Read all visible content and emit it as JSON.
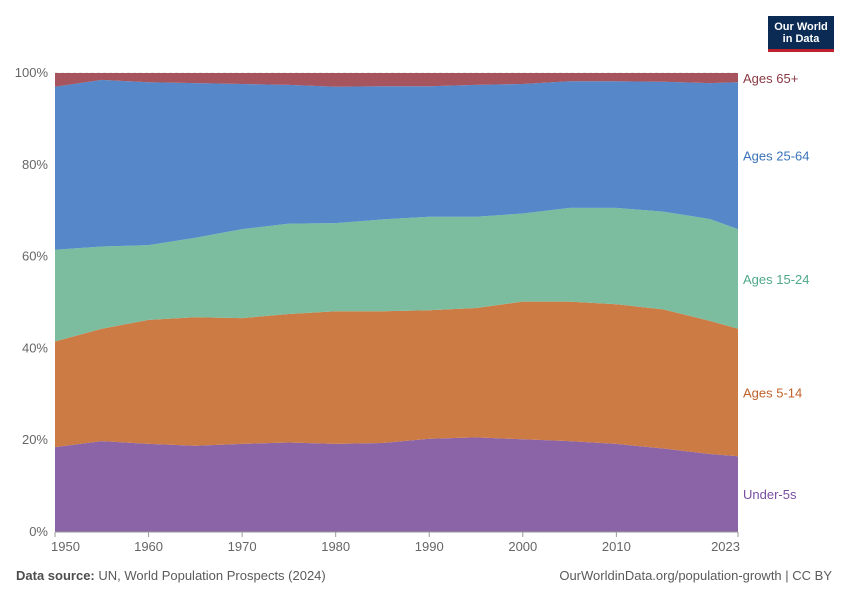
{
  "logo": {
    "line1": "Our World",
    "line2": "in Data"
  },
  "footer": {
    "source_label": "Data source:",
    "source_text": "UN, World Population Prospects (2024)",
    "url": "OurWorldinData.org/population-growth | CC BY"
  },
  "chart_data": {
    "type": "area",
    "stacked": true,
    "x": [
      1950,
      1955,
      1960,
      1965,
      1970,
      1975,
      1980,
      1985,
      1990,
      1995,
      2000,
      2005,
      2010,
      2015,
      2020,
      2023
    ],
    "xticks": [
      "1950",
      "1960",
      "1970",
      "1980",
      "1990",
      "2000",
      "2010",
      "2023"
    ],
    "xtick_values": [
      1950,
      1960,
      1970,
      1980,
      1990,
      2000,
      2010,
      2023
    ],
    "yticks": [
      "0%",
      "20%",
      "40%",
      "60%",
      "80%",
      "100%"
    ],
    "ytick_values": [
      0,
      20,
      40,
      60,
      80,
      100
    ],
    "ylim": [
      0,
      100
    ],
    "grid": true,
    "legend": "right",
    "series": [
      {
        "name": "Under-5s",
        "color": "#8b64a8",
        "values": [
          18.5,
          19.8,
          19.2,
          18.8,
          19.2,
          19.5,
          19.2,
          19.4,
          20.3,
          20.6,
          20.2,
          19.8,
          19.2,
          18.2,
          17.0,
          16.5
        ]
      },
      {
        "name": "Ages 5-14",
        "color": "#cd7b45",
        "values": [
          23.0,
          24.5,
          27.0,
          28.0,
          27.4,
          28.0,
          28.9,
          28.7,
          28.0,
          28.2,
          30.0,
          30.4,
          30.4,
          30.3,
          29.0,
          27.8
        ]
      },
      {
        "name": "Ages 15-24",
        "color": "#7bbd9e",
        "values": [
          20.0,
          17.9,
          16.3,
          17.3,
          19.4,
          19.7,
          19.2,
          20.0,
          20.4,
          19.9,
          19.2,
          20.4,
          21.0,
          21.3,
          22.2,
          21.7
        ]
      },
      {
        "name": "Ages 25-64",
        "color": "#5587c9",
        "values": [
          35.5,
          36.3,
          35.5,
          33.7,
          31.6,
          30.2,
          29.7,
          29.0,
          28.4,
          28.7,
          28.2,
          27.6,
          27.6,
          28.3,
          29.6,
          32.0
        ]
      },
      {
        "name": "Ages 65+",
        "color": "#a6545e",
        "values": [
          3.0,
          1.5,
          2.0,
          2.2,
          2.4,
          2.6,
          3.0,
          2.9,
          2.9,
          2.6,
          2.4,
          1.8,
          1.8,
          1.9,
          2.2,
          2.0
        ]
      }
    ]
  }
}
